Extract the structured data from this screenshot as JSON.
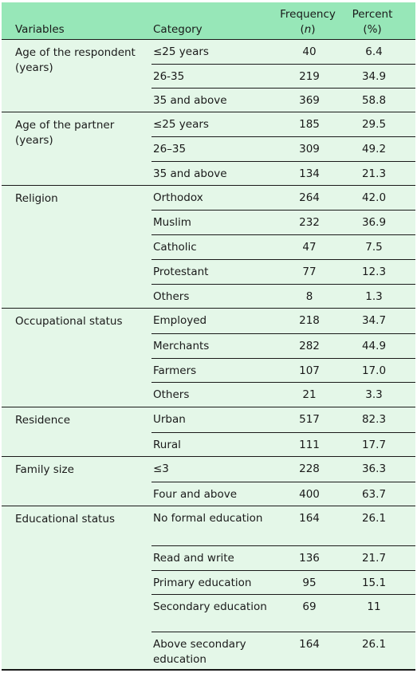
{
  "header": {
    "variables": "Variables",
    "category": "Category",
    "frequency_line1": "Frequency",
    "frequency_line2": "(n)",
    "percent_line1": "Percent",
    "percent_line2": "(%)"
  },
  "groups": [
    {
      "variable": "Age of the respondent (years)",
      "rows": [
        {
          "category": "≤25 years",
          "frequency": "40",
          "percent": "6.4"
        },
        {
          "category": "26-35",
          "frequency": "219",
          "percent": "34.9"
        },
        {
          "category": "35 and above",
          "frequency": "369",
          "percent": "58.8"
        }
      ]
    },
    {
      "variable": "Age of the partner (years)",
      "rows": [
        {
          "category": "≤25 years",
          "frequency": "185",
          "percent": "29.5"
        },
        {
          "category": "26–35",
          "frequency": "309",
          "percent": "49.2"
        },
        {
          "category": "35 and above",
          "frequency": "134",
          "percent": "21.3"
        }
      ]
    },
    {
      "variable": "Religion",
      "rows": [
        {
          "category": "Orthodox",
          "frequency": "264",
          "percent": "42.0"
        },
        {
          "category": "Muslim",
          "frequency": "232",
          "percent": "36.9"
        },
        {
          "category": "Catholic",
          "frequency": "47",
          "percent": "7.5"
        },
        {
          "category": "Protestant",
          "frequency": "77",
          "percent": "12.3"
        },
        {
          "category": "Others",
          "frequency": "8",
          "percent": "1.3"
        }
      ]
    },
    {
      "variable": "Occupational status",
      "rows": [
        {
          "category": "Employed",
          "frequency": "218",
          "percent": "34.7"
        },
        {
          "category": "Merchants",
          "frequency": "282",
          "percent": "44.9"
        },
        {
          "category": "Farmers",
          "frequency": "107",
          "percent": "17.0"
        },
        {
          "category": "Others",
          "frequency": "21",
          "percent": "3.3"
        }
      ]
    },
    {
      "variable": "Residence",
      "rows": [
        {
          "category": "Urban",
          "frequency": "517",
          "percent": "82.3"
        },
        {
          "category": "Rural",
          "frequency": "111",
          "percent": "17.7"
        }
      ]
    },
    {
      "variable": "Family size",
      "rows": [
        {
          "category": "≤3",
          "frequency": "228",
          "percent": "36.3"
        },
        {
          "category": "Four and above",
          "frequency": "400",
          "percent": "63.7"
        }
      ]
    },
    {
      "variable": "Educational status",
      "rows": [
        {
          "category": "No formal education",
          "frequency": "164",
          "percent": "26.1"
        },
        {
          "category": "Read and write",
          "frequency": "136",
          "percent": "21.7"
        },
        {
          "category": "Primary education",
          "frequency": "95",
          "percent": "15.1"
        },
        {
          "category": "Secondary education",
          "frequency": "69",
          "percent": "11"
        },
        {
          "category": "Above secondary education",
          "frequency": "164",
          "percent": "26.1"
        }
      ]
    }
  ]
}
